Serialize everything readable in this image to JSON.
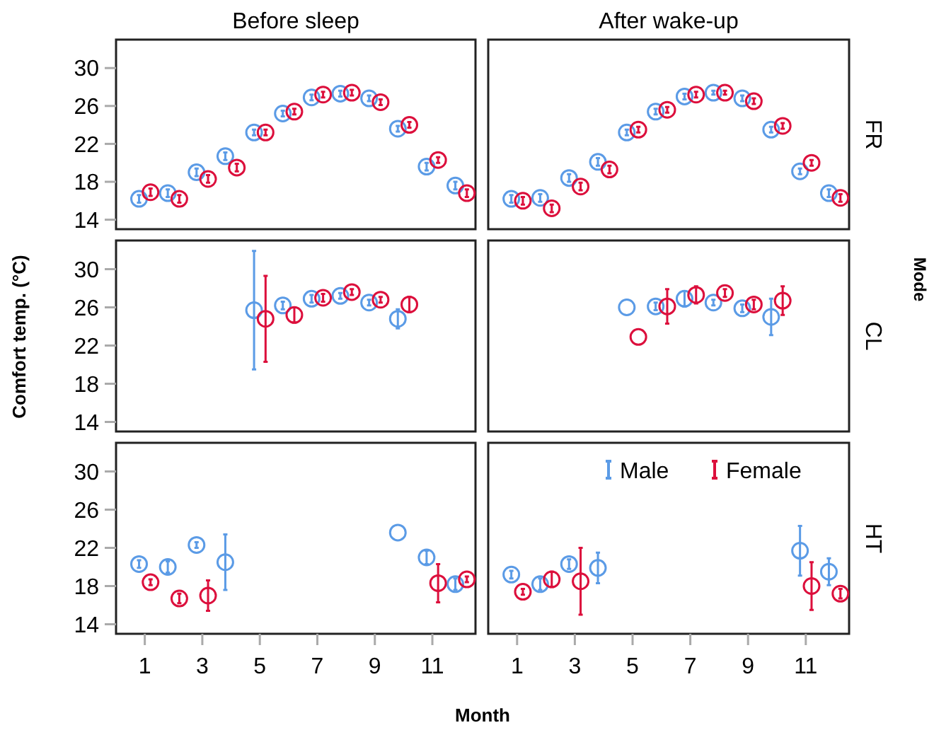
{
  "chart_data": [
    {
      "type": "scatter",
      "title": "Before sleep",
      "xlim": [
        0,
        12.5
      ],
      "ylim": [
        13,
        33
      ],
      "yticks": [
        14,
        18,
        22,
        26,
        30
      ],
      "tick_labels": "y",
      "grid": false,
      "marker": "circle",
      "series": [
        {
          "color": "#5b9be6",
          "x": [
            0.8,
            1.8,
            2.8,
            3.8,
            4.8,
            5.8,
            6.8,
            7.8,
            8.8,
            9.8,
            10.8,
            11.8
          ],
          "values": [
            16.2,
            16.8,
            19.0,
            20.7,
            23.2,
            25.2,
            26.9,
            27.3,
            26.8,
            23.6,
            19.6,
            17.6
          ],
          "errors": [
            0.4,
            0.4,
            0.4,
            0.4,
            0.3,
            0.3,
            0.3,
            0.3,
            0.3,
            0.3,
            0.4,
            0.4
          ]
        },
        {
          "color": "#dc0f3c",
          "x": [
            1.2,
            2.2,
            3.2,
            4.2,
            5.2,
            6.2,
            7.2,
            8.2,
            9.2,
            10.2,
            11.2,
            12.2
          ],
          "values": [
            16.9,
            16.2,
            18.3,
            19.5,
            23.2,
            25.4,
            27.2,
            27.4,
            26.4,
            24.0,
            20.3,
            16.8
          ],
          "errors": [
            0.4,
            0.4,
            0.4,
            0.4,
            0.3,
            0.3,
            0.3,
            0.3,
            0.3,
            0.3,
            0.3,
            0.4
          ]
        }
      ]
    },
    {
      "type": "scatter",
      "title": "After wake-up",
      "y2label": "FR",
      "xlim": [
        0,
        12.5
      ],
      "ylim": [
        13,
        33
      ],
      "tick_labels": false,
      "grid": false,
      "marker": "circle",
      "series": [
        {
          "color": "#5b9be6",
          "x": [
            0.8,
            1.8,
            2.8,
            3.8,
            4.8,
            5.8,
            6.8,
            7.8,
            8.8,
            9.8,
            10.8,
            11.8
          ],
          "values": [
            16.2,
            16.3,
            18.4,
            20.1,
            23.2,
            25.4,
            27.0,
            27.4,
            26.8,
            23.5,
            19.1,
            16.8
          ],
          "errors": [
            0.4,
            0.4,
            0.4,
            0.4,
            0.3,
            0.3,
            0.3,
            0.2,
            0.3,
            0.3,
            0.3,
            0.4
          ]
        },
        {
          "color": "#dc0f3c",
          "x": [
            1.2,
            2.2,
            3.2,
            4.2,
            5.2,
            6.2,
            7.2,
            8.2,
            9.2,
            10.2,
            11.2,
            12.2
          ],
          "values": [
            16.0,
            15.2,
            17.5,
            19.3,
            23.5,
            25.6,
            27.2,
            27.4,
            26.5,
            23.9,
            20.0,
            16.3
          ],
          "errors": [
            0.4,
            0.4,
            0.4,
            0.4,
            0.3,
            0.3,
            0.3,
            0.2,
            0.3,
            0.3,
            0.3,
            0.4
          ]
        }
      ]
    },
    {
      "type": "scatter",
      "ylabel": "Comfort temp. (°C)",
      "xlim": [
        0,
        12.5
      ],
      "ylim": [
        13,
        33
      ],
      "yticks": [
        14,
        18,
        22,
        26,
        30
      ],
      "tick_labels": "y",
      "grid": false,
      "marker": "circle",
      "series": [
        {
          "color": "#5b9be6",
          "x": [
            4.8,
            5.8,
            6.8,
            7.8,
            8.8,
            9.8
          ],
          "values": [
            25.7,
            26.2,
            26.9,
            27.2,
            26.5,
            24.8
          ],
          "errors": [
            6.2,
            0.4,
            0.4,
            0.3,
            0.3,
            1.0
          ]
        },
        {
          "color": "#dc0f3c",
          "x": [
            5.2,
            6.2,
            7.2,
            8.2,
            9.2,
            10.2
          ],
          "values": [
            24.8,
            25.2,
            27.0,
            27.6,
            26.8,
            26.3
          ],
          "errors": [
            4.5,
            0.8,
            0.4,
            0.3,
            0.3,
            0.8
          ]
        }
      ]
    },
    {
      "type": "scatter",
      "y2label": "CL",
      "annotations": [
        "Mode"
      ],
      "xlim": [
        0,
        12.5
      ],
      "ylim": [
        13,
        33
      ],
      "tick_labels": false,
      "grid": false,
      "marker": "circle",
      "series": [
        {
          "color": "#5b9be6",
          "x": [
            4.8,
            5.8,
            6.8,
            7.8,
            8.8,
            9.8
          ],
          "values": [
            26.0,
            26.1,
            26.9,
            26.5,
            25.9,
            25.0
          ],
          "errors": [
            null,
            0.4,
            0.8,
            0.3,
            0.4,
            1.9
          ]
        },
        {
          "color": "#dc0f3c",
          "x": [
            5.2,
            6.2,
            7.2,
            8.2,
            9.2,
            10.2
          ],
          "values": [
            22.9,
            26.1,
            27.3,
            27.5,
            26.3,
            26.7
          ],
          "errors": [
            null,
            1.8,
            0.9,
            0.4,
            0.5,
            1.5
          ]
        }
      ]
    },
    {
      "type": "scatter",
      "xlabel": "Month",
      "xlim": [
        0,
        12.5
      ],
      "ylim": [
        13,
        33
      ],
      "xticks": [
        1,
        3,
        5,
        7,
        9,
        11
      ],
      "yticks": [
        14,
        18,
        22,
        26,
        30
      ],
      "grid": false,
      "marker": "circle",
      "series": [
        {
          "color": "#5b9be6",
          "x": [
            0.8,
            1.8,
            2.8,
            3.8,
            9.8,
            10.8,
            11.8
          ],
          "values": [
            20.3,
            20.0,
            22.3,
            20.5,
            23.6,
            21.0,
            18.2
          ],
          "errors": [
            0.4,
            0.6,
            0.3,
            2.9,
            null,
            0.7,
            0.6
          ]
        },
        {
          "color": "#dc0f3c",
          "x": [
            1.2,
            2.2,
            3.2,
            11.2,
            12.2
          ],
          "values": [
            18.4,
            16.7,
            17.0,
            18.3,
            18.7
          ],
          "errors": [
            0.3,
            0.5,
            1.6,
            2.0,
            0.3
          ]
        }
      ]
    },
    {
      "type": "scatter",
      "y2label": "HT",
      "xlim": [
        0,
        12.5
      ],
      "ylim": [
        13,
        33
      ],
      "xticks": [
        1,
        3,
        5,
        7,
        9,
        11
      ],
      "tick_labels": "x",
      "grid": false,
      "marker": "circle",
      "legend": "top",
      "series": [
        {
          "name": "Male",
          "color": "#5b9be6",
          "x": [
            0.8,
            1.8,
            2.8,
            3.8,
            10.8,
            11.8
          ],
          "values": [
            19.2,
            18.2,
            20.3,
            19.9,
            21.7,
            19.5
          ],
          "errors": [
            0.4,
            0.6,
            0.5,
            1.6,
            2.6,
            1.4
          ]
        },
        {
          "name": "Female",
          "color": "#dc0f3c",
          "x": [
            1.2,
            2.2,
            3.2,
            11.2,
            12.2
          ],
          "values": [
            17.4,
            18.7,
            18.5,
            18.0,
            17.2
          ],
          "errors": [
            0.3,
            0.8,
            3.5,
            2.5,
            0.5
          ]
        }
      ]
    }
  ]
}
